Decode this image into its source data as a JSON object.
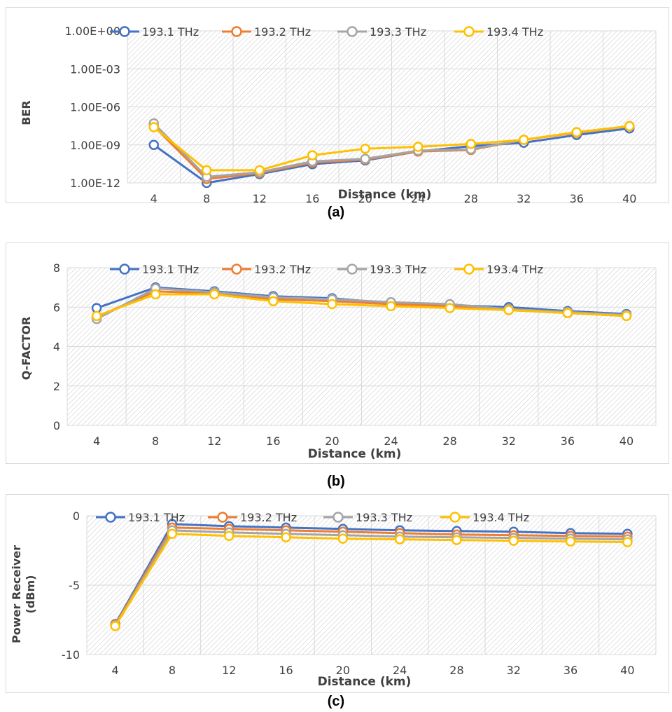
{
  "colors": {
    "193.1 THz": "#4472C4",
    "193.2 THz": "#ED7D31",
    "193.3 THz": "#A5A5A5",
    "193.4 THz": "#FFC000",
    "grid": "#d9d9d9",
    "hatch": "#d0d0d0",
    "axis_text": "#404040"
  },
  "legend_position": "top",
  "captions": [
    "(a)",
    "(b)",
    "(c)"
  ],
  "chart_data": [
    {
      "type": "line",
      "caption": "(a)",
      "xlabel": "Distance (km)",
      "ylabel": "BER",
      "yscale": "log",
      "ylim": [
        1e-12,
        1
      ],
      "yticks": [
        1e-12,
        1e-09,
        1e-06,
        0.001,
        1
      ],
      "ytick_labels": [
        "1.00E-12",
        "1.00E-09",
        "1.00E-06",
        "1.00E-03",
        "1.00E+00"
      ],
      "grid": true,
      "x": [
        4,
        8,
        12,
        16,
        20,
        24,
        28,
        32,
        36,
        40
      ],
      "series": [
        {
          "name": "193.1 THz",
          "values": [
            1e-09,
            1e-12,
            5e-12,
            3e-11,
            6e-11,
            3e-10,
            8e-10,
            1.5e-09,
            6e-09,
            2e-08
          ]
        },
        {
          "name": "193.2 THz",
          "values": [
            3e-08,
            2e-12,
            6e-12,
            4e-11,
            7e-11,
            3e-10,
            4e-10,
            2.5e-09,
            9e-09,
            3e-08
          ]
        },
        {
          "name": "193.3 THz",
          "values": [
            5e-08,
            3e-12,
            7e-12,
            5e-11,
            8e-11,
            3.5e-10,
            4.5e-10,
            2.5e-09,
            1e-08,
            3e-08
          ]
        },
        {
          "name": "193.4 THz",
          "values": [
            2.5e-08,
            1e-11,
            1e-11,
            1.5e-10,
            5e-10,
            7e-10,
            1.2e-09,
            2.5e-09,
            1e-08,
            3e-08
          ]
        }
      ]
    },
    {
      "type": "line",
      "caption": "(b)",
      "xlabel": "Distance (km)",
      "ylabel": "Q-FACTOR",
      "yscale": "linear",
      "ylim": [
        0,
        8
      ],
      "yticks": [
        0,
        2,
        4,
        6,
        8
      ],
      "ytick_labels": [
        "0",
        "2",
        "4",
        "6",
        "8"
      ],
      "grid": true,
      "x": [
        4,
        8,
        12,
        16,
        20,
        24,
        28,
        32,
        36,
        40
      ],
      "series": [
        {
          "name": "193.1 THz",
          "values": [
            5.95,
            7.0,
            6.8,
            6.55,
            6.45,
            6.2,
            6.1,
            6.0,
            5.8,
            5.65
          ]
        },
        {
          "name": "193.2 THz",
          "values": [
            5.5,
            6.8,
            6.7,
            6.4,
            6.3,
            6.15,
            6.05,
            5.85,
            5.7,
            5.55
          ]
        },
        {
          "name": "193.3 THz",
          "values": [
            5.4,
            6.95,
            6.75,
            6.5,
            6.4,
            6.25,
            6.15,
            5.9,
            5.75,
            5.6
          ]
        },
        {
          "name": "193.4 THz",
          "values": [
            5.55,
            6.65,
            6.65,
            6.3,
            6.15,
            6.05,
            5.95,
            5.85,
            5.7,
            5.55
          ]
        }
      ]
    },
    {
      "type": "line",
      "caption": "(c)",
      "xlabel": "Distance (km)",
      "ylabel": "Power Receiver\n(dBm)",
      "yscale": "linear",
      "ylim": [
        -10,
        0
      ],
      "yticks": [
        -10,
        -5,
        0
      ],
      "ytick_labels": [
        "-10",
        "-5",
        "0"
      ],
      "grid": true,
      "x": [
        4,
        8,
        12,
        16,
        20,
        24,
        28,
        32,
        36,
        40
      ],
      "series": [
        {
          "name": "193.1 THz",
          "values": [
            -7.8,
            -0.6,
            -0.75,
            -0.85,
            -0.95,
            -1.05,
            -1.1,
            -1.15,
            -1.25,
            -1.3
          ]
        },
        {
          "name": "193.2 THz",
          "values": [
            -7.85,
            -0.85,
            -0.95,
            -1.05,
            -1.15,
            -1.25,
            -1.35,
            -1.4,
            -1.45,
            -1.5
          ]
        },
        {
          "name": "193.3 THz",
          "values": [
            -7.9,
            -1.05,
            -1.2,
            -1.3,
            -1.4,
            -1.5,
            -1.55,
            -1.6,
            -1.65,
            -1.7
          ]
        },
        {
          "name": "193.4 THz",
          "values": [
            -7.95,
            -1.3,
            -1.45,
            -1.55,
            -1.65,
            -1.7,
            -1.75,
            -1.8,
            -1.85,
            -1.9
          ]
        }
      ]
    }
  ]
}
